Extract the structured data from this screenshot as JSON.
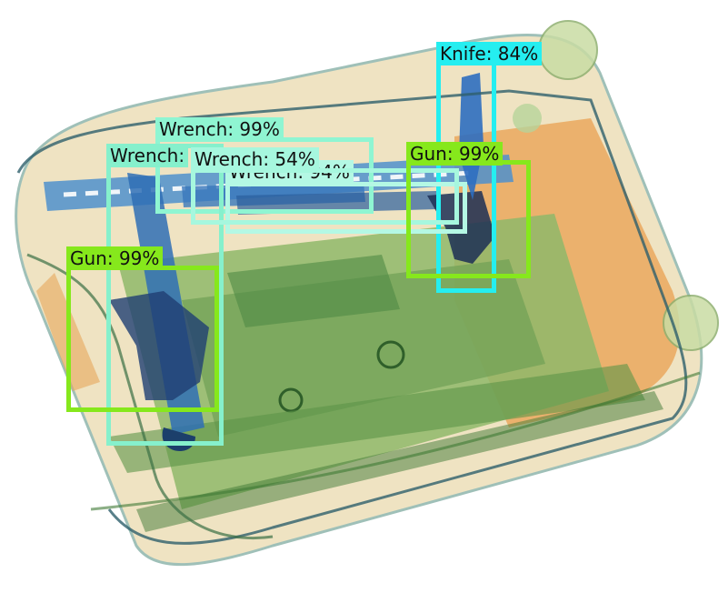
{
  "scene": {
    "description_type": "x-ray baggage scan with object detection overlays",
    "palette": {
      "background": "#ffffff",
      "bag_light": "#efe3c2",
      "organic_orange": "#e9a050",
      "circuit_green": "#8fb86a",
      "dark_green": "#3f7a36",
      "metal_blue": "#2f6fb5",
      "outline_teal": "#2e5f6b"
    }
  },
  "detections": [
    {
      "id": "knife",
      "class": "Knife",
      "score": "84%",
      "label": "Knife: 84%",
      "color": "#25eef0"
    },
    {
      "id": "wrench-1",
      "class": "Wrench",
      "score": "99%",
      "label": "Wrench: 99%",
      "color": "#8ff5d2"
    },
    {
      "id": "wrench-2",
      "class": "Wrench",
      "score": "",
      "label": "Wrench:",
      "color": "#86f0cc"
    },
    {
      "id": "wrench-3",
      "class": "Wrench",
      "score": "54%",
      "label": "Wrench: 54%",
      "color": "#a6f7de"
    },
    {
      "id": "wrench-4",
      "class": "Wrench",
      "score": "94%",
      "label": "Wrench: 94%",
      "color": "#b4f8e4"
    },
    {
      "id": "gun-1",
      "class": "Gun",
      "score": "99%",
      "label": "Gun: 99%",
      "color": "#86e81c"
    },
    {
      "id": "gun-2",
      "class": "Gun",
      "score": "99%",
      "label": "Gun: 99%",
      "color": "#86e81c"
    }
  ]
}
